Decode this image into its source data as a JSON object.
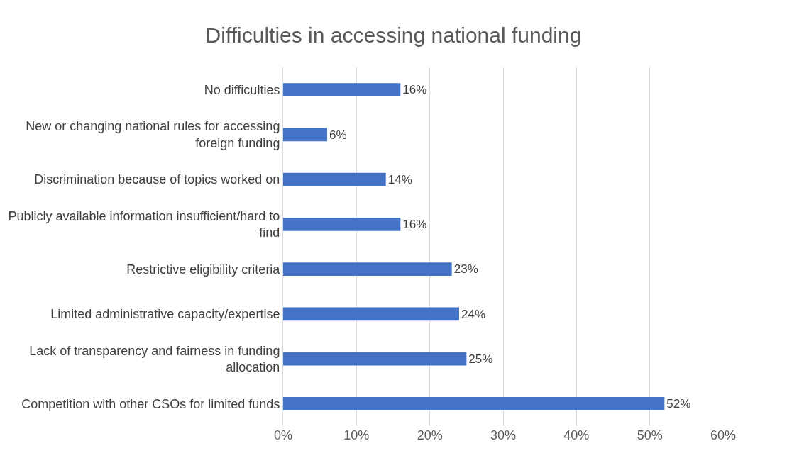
{
  "chart_data": {
    "type": "bar",
    "orientation": "horizontal",
    "title": "Difficulties in accessing national funding",
    "categories": [
      "No difficulties",
      "New or changing national rules for accessing foreign funding",
      "Discrimination because of topics worked on",
      "Publicly available information insufficient/hard to find",
      "Restrictive eligibility criteria",
      "Limited administrative capacity/expertise",
      "Lack of transparency and fairness in funding allocation",
      "Competition with other CSOs for limited funds"
    ],
    "values": [
      16,
      6,
      14,
      16,
      23,
      24,
      25,
      52
    ],
    "value_labels": [
      "16%",
      "6%",
      "14%",
      "16%",
      "23%",
      "24%",
      "25%",
      "52%"
    ],
    "color": "#4472c4",
    "xlim": [
      0,
      60
    ],
    "xticks": [
      {
        "value": 0,
        "label": "0%"
      },
      {
        "value": 10,
        "label": "10%"
      },
      {
        "value": 20,
        "label": "20%"
      },
      {
        "value": 30,
        "label": "30%"
      },
      {
        "value": 40,
        "label": "40%"
      },
      {
        "value": 50,
        "label": "50%"
      },
      {
        "value": 60,
        "label": "60%"
      }
    ],
    "grid": "x"
  }
}
